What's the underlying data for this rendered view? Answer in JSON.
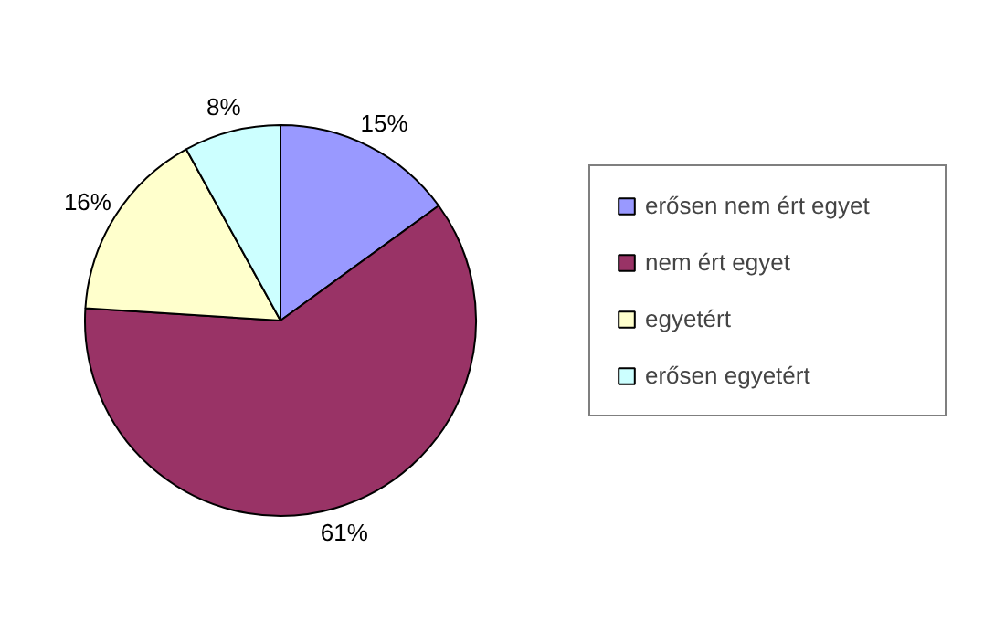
{
  "chart_data": {
    "type": "pie",
    "categories": [
      "erősen nem ért egyet",
      "nem ért egyet",
      "egyetért",
      "erősen egyetért"
    ],
    "values": [
      15,
      61,
      16,
      8
    ],
    "value_labels": [
      "15%",
      "61%",
      "16%",
      "8%"
    ],
    "colors": [
      "#9999ff",
      "#993366",
      "#ffffcc",
      "#ccffff"
    ],
    "legend": "right"
  }
}
